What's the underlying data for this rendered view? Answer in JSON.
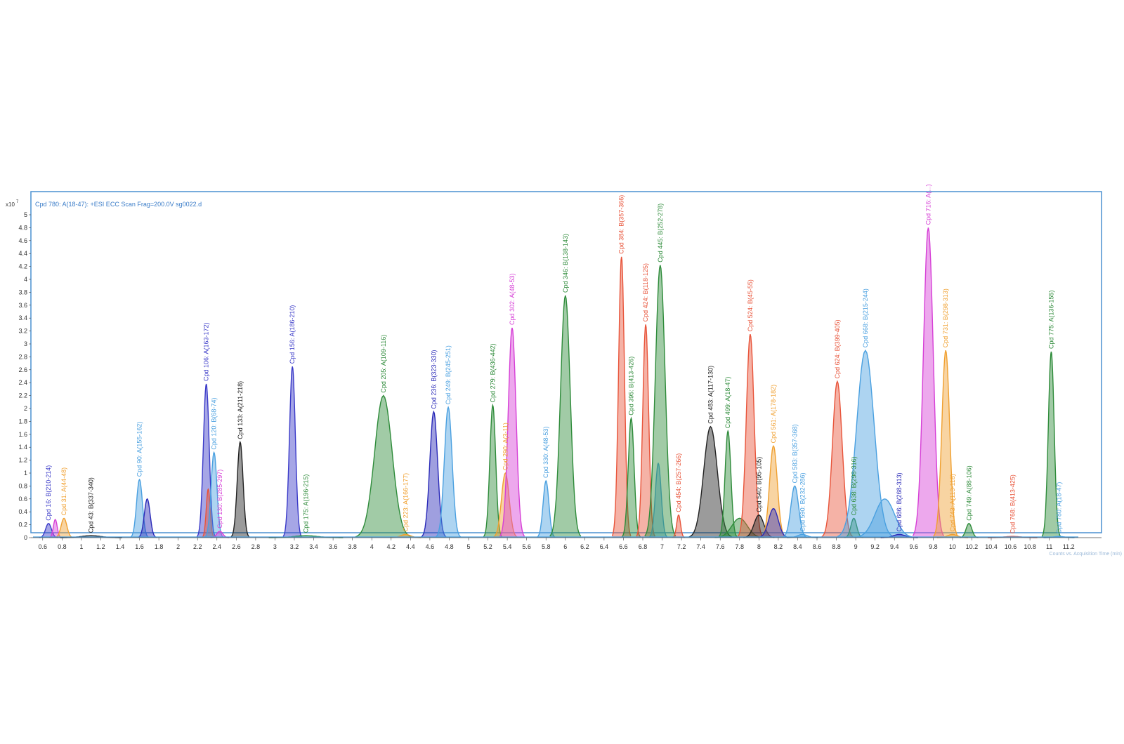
{
  "chart_data": {
    "type": "area",
    "title": "",
    "header": "Cpd 780: A(18-47): +ESI ECC Scan Frag=200.0V sg0022.d",
    "xlabel": "",
    "ylabel": "",
    "y_multiplier": "x10",
    "y_exponent": "7",
    "xlim": [
      0.5,
      11.3
    ],
    "ylim": [
      0,
      5
    ],
    "x_ticks": [
      "0.6",
      "0.8",
      "1",
      "1.2",
      "1.4",
      "1.6",
      "1.8",
      "2",
      "2.2",
      "2.4",
      "2.6",
      "2.8",
      "3",
      "3.2",
      "3.4",
      "3.6",
      "3.8",
      "4",
      "4.2",
      "4.4",
      "4.6",
      "4.8",
      "5",
      "5.2",
      "5.4",
      "5.6",
      "5.8",
      "6",
      "6.2",
      "6.4",
      "6.6",
      "6.8",
      "7",
      "7.2",
      "7.4",
      "7.6",
      "7.8",
      "8",
      "8.2",
      "8.4",
      "8.6",
      "8.8",
      "9",
      "9.2",
      "9.4",
      "9.6",
      "9.8",
      "10",
      "10.2",
      "10.4",
      "10.6",
      "10.8",
      "11",
      "11.2"
    ],
    "y_ticks": [
      "0",
      "0.2",
      "0.4",
      "0.6",
      "0.8",
      "1",
      "1.2",
      "1.4",
      "1.6",
      "1.8",
      "2",
      "2.2",
      "2.4",
      "2.6",
      "2.8",
      "3",
      "3.2",
      "3.4",
      "3.6",
      "3.8",
      "4",
      "4.2",
      "4.4",
      "4.6",
      "4.8",
      "5"
    ],
    "corner_note": "Counts vs. Acquisition Time (min)",
    "grid": false,
    "legend": "none",
    "peaks": [
      {
        "rt": 0.66,
        "height": 0.22,
        "width": 0.03,
        "color": "#3a3ac8",
        "label": "Cpd 16: B(210-214)"
      },
      {
        "rt": 0.73,
        "height": 0.28,
        "width": 0.02,
        "color": "#d63fd6",
        "label": ""
      },
      {
        "rt": 0.82,
        "height": 0.3,
        "width": 0.03,
        "color": "#f0a030",
        "label": "Cpd 31: A(44-48)"
      },
      {
        "rt": 1.1,
        "height": 0.03,
        "width": 0.1,
        "color": "#222222",
        "label": "Cpd 43: B(337-340)"
      },
      {
        "rt": 1.6,
        "height": 0.9,
        "width": 0.03,
        "color": "#4aa0e0",
        "label": "Cpd 90: A(155-162)"
      },
      {
        "rt": 1.68,
        "height": 0.6,
        "width": 0.03,
        "color": "#2a2ab8",
        "label": ""
      },
      {
        "rt": 2.29,
        "height": 2.38,
        "width": 0.03,
        "color": "#3a3ac8",
        "label": "Cpd 106: A(163-172)"
      },
      {
        "rt": 2.31,
        "height": 0.75,
        "width": 0.02,
        "color": "#e8543a",
        "label": ""
      },
      {
        "rt": 2.37,
        "height": 1.32,
        "width": 0.03,
        "color": "#4aa0e0",
        "label": "Cpd 120: B(68-74)"
      },
      {
        "rt": 2.43,
        "height": 0.1,
        "width": 0.03,
        "color": "#d63fd6",
        "label": "Cpd 130: B(285-297)"
      },
      {
        "rt": 2.64,
        "height": 1.48,
        "width": 0.03,
        "color": "#222222",
        "label": "Cpd 133: A(211-218)"
      },
      {
        "rt": 3.18,
        "height": 2.65,
        "width": 0.03,
        "color": "#3a3ac8",
        "label": "Cpd 156: A(186-210)"
      },
      {
        "rt": 3.32,
        "height": 0.03,
        "width": 0.12,
        "color": "#2e8b3a",
        "label": "Cpd 175: A(196-215)"
      },
      {
        "rt": 4.12,
        "height": 2.2,
        "width": 0.09,
        "color": "#2e8b3a",
        "label": "Cpd 205: A(109-116)"
      },
      {
        "rt": 4.35,
        "height": 0.05,
        "width": 0.05,
        "color": "#f0a030",
        "label": "Cpd 223: A(166-177)"
      },
      {
        "rt": 4.64,
        "height": 1.95,
        "width": 0.04,
        "color": "#2a2ab8",
        "label": "Cpd 236: B(323-330)"
      },
      {
        "rt": 4.79,
        "height": 2.02,
        "width": 0.04,
        "color": "#4aa0e0",
        "label": "Cpd 249: B(245-251)"
      },
      {
        "rt": 5.25,
        "height": 2.05,
        "width": 0.03,
        "color": "#2e8b3a",
        "label": "Cpd 279: B(436-442)"
      },
      {
        "rt": 5.38,
        "height": 1.0,
        "width": 0.04,
        "color": "#f0a030",
        "label": "Cpd 290: A(3-11)"
      },
      {
        "rt": 5.45,
        "height": 3.25,
        "width": 0.04,
        "color": "#d63fd6",
        "label": "Cpd 302: A(48-53)"
      },
      {
        "rt": 5.8,
        "height": 0.88,
        "width": 0.03,
        "color": "#4aa0e0",
        "label": "Cpd 330: A(48-53)"
      },
      {
        "rt": 6.0,
        "height": 3.75,
        "width": 0.05,
        "color": "#2e8b3a",
        "label": "Cpd 346: B(138-143)"
      },
      {
        "rt": 6.58,
        "height": 4.35,
        "width": 0.03,
        "color": "#e8543a",
        "label": "Cpd 384: B(357-366)"
      },
      {
        "rt": 6.68,
        "height": 1.85,
        "width": 0.03,
        "color": "#2e8b3a",
        "label": "Cpd 395: B(413-426)"
      },
      {
        "rt": 6.83,
        "height": 3.3,
        "width": 0.03,
        "color": "#e8543a",
        "label": "Cpd 424: B(118-125)"
      },
      {
        "rt": 6.96,
        "height": 1.15,
        "width": 0.03,
        "color": "#4aa0e0",
        "label": ""
      },
      {
        "rt": 6.98,
        "height": 4.22,
        "width": 0.05,
        "color": "#2e8b3a",
        "label": "Cpd 445: B(252-278)"
      },
      {
        "rt": 7.17,
        "height": 0.35,
        "width": 0.02,
        "color": "#e8543a",
        "label": "Cpd 454: B(257-266)"
      },
      {
        "rt": 7.5,
        "height": 1.72,
        "width": 0.07,
        "color": "#222222",
        "label": "Cpd 483: A(117-130)"
      },
      {
        "rt": 7.68,
        "height": 1.65,
        "width": 0.03,
        "color": "#2e8b3a",
        "label": "Cpd 499: A(18-47)"
      },
      {
        "rt": 7.8,
        "height": 0.3,
        "width": 0.08,
        "color": "#2e8b3a",
        "label": ""
      },
      {
        "rt": 7.91,
        "height": 3.15,
        "width": 0.04,
        "color": "#e8543a",
        "label": "Cpd 524: B(45-55)"
      },
      {
        "rt": 8.0,
        "height": 0.35,
        "width": 0.05,
        "color": "#222222",
        "label": "Cpd 540: B(95-105)"
      },
      {
        "rt": 8.15,
        "height": 1.42,
        "width": 0.04,
        "color": "#f0a030",
        "label": "Cpd 561: A(178-182)"
      },
      {
        "rt": 8.15,
        "height": 0.45,
        "width": 0.05,
        "color": "#2a2ab8",
        "label": ""
      },
      {
        "rt": 8.37,
        "height": 0.8,
        "width": 0.04,
        "color": "#4aa0e0",
        "label": "Cpd 583: B(357-368)"
      },
      {
        "rt": 8.45,
        "height": 0.05,
        "width": 0.05,
        "color": "#4aa0e0",
        "label": "Cpd 590: B(232-286)"
      },
      {
        "rt": 8.81,
        "height": 2.42,
        "width": 0.05,
        "color": "#e8543a",
        "label": "Cpd 624: B(399-405)"
      },
      {
        "rt": 8.98,
        "height": 0.3,
        "width": 0.03,
        "color": "#2e8b3a",
        "label": "Cpd 638: B(298-316)"
      },
      {
        "rt": 9.1,
        "height": 2.9,
        "width": 0.09,
        "color": "#4aa0e0",
        "label": "Cpd 668: B(215-244)"
      },
      {
        "rt": 9.3,
        "height": 0.6,
        "width": 0.1,
        "color": "#4aa0e0",
        "label": ""
      },
      {
        "rt": 9.45,
        "height": 0.05,
        "width": 0.06,
        "color": "#2a2ab8",
        "label": "Cpd 686: B(268-313)"
      },
      {
        "rt": 9.75,
        "height": 4.8,
        "width": 0.05,
        "color": "#d63fd6",
        "label": "Cpd 716: A(...)"
      },
      {
        "rt": 9.93,
        "height": 2.9,
        "width": 0.04,
        "color": "#f0a030",
        "label": "Cpd 731: B(298-313)"
      },
      {
        "rt": 10.0,
        "height": 0.05,
        "width": 0.05,
        "color": "#f0a030",
        "label": "Cpd 743: A(113-118)"
      },
      {
        "rt": 10.17,
        "height": 0.22,
        "width": 0.03,
        "color": "#2e8b3a",
        "label": "Cpd 749: A(88-106)"
      },
      {
        "rt": 10.62,
        "height": 0.02,
        "width": 0.08,
        "color": "#e8543a",
        "label": "Cpd 768: B(413-425)"
      },
      {
        "rt": 11.02,
        "height": 2.88,
        "width": 0.03,
        "color": "#2e8b3a",
        "label": "Cpd 775: A(136-155)"
      },
      {
        "rt": 11.1,
        "height": 0.02,
        "width": 0.05,
        "color": "#4aa0e0",
        "label": "Cpd 780: A(18-47)"
      }
    ]
  }
}
